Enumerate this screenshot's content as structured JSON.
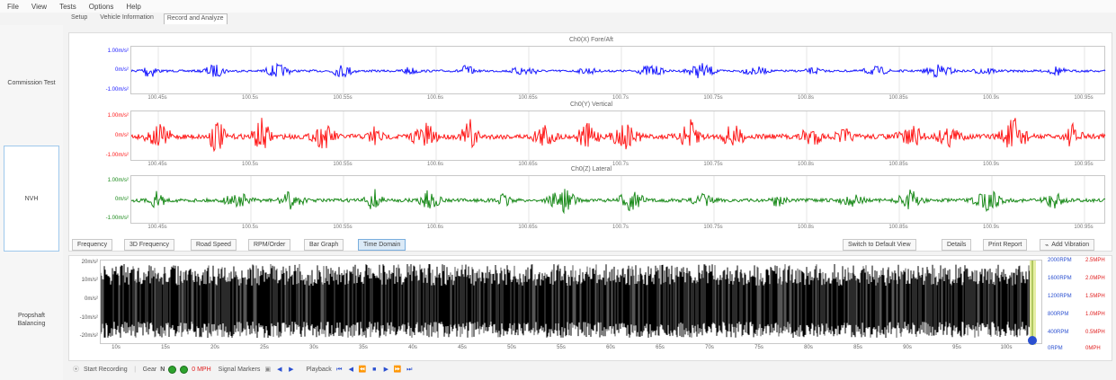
{
  "menu": [
    "File",
    "View",
    "Tests",
    "Options",
    "Help"
  ],
  "tabs": [
    "Setup",
    "Vehicle Information",
    "Record and Analyze"
  ],
  "sidebar": [
    "Commission Test",
    "NVH",
    "Propshaft Balancing"
  ],
  "charts": [
    {
      "title": "Ch0(X) Fore/Aft",
      "color": "#1a1aff",
      "yticks": [
        "1.00m/s²",
        "0m/s²",
        "-1.00m/s²"
      ]
    },
    {
      "title": "Ch0(Y) Vertical",
      "color": "#ff1a1a",
      "yticks": [
        "1.00m/s²",
        "0m/s²",
        "-1.00m/s²"
      ]
    },
    {
      "title": "Ch0(Z) Lateral",
      "color": "#1a8a1a",
      "yticks": [
        "1.00m/s²",
        "0m/s²",
        "-1.00m/s²"
      ]
    }
  ],
  "xticks": [
    "100.45s",
    "100.5s",
    "100.55s",
    "100.6s",
    "100.65s",
    "100.7s",
    "100.75s",
    "100.8s",
    "100.85s",
    "100.9s",
    "100.95s"
  ],
  "analysis_buttons": [
    "Frequency",
    "3D Frequency",
    "Road Speed",
    "RPM/Order",
    "Bar Graph",
    "Time Domain"
  ],
  "right_buttons": [
    "Switch to Default View",
    "Details",
    "Print Report",
    "Add Vibration"
  ],
  "bottom": {
    "yticks": [
      "20m/s²",
      "10m/s²",
      "0m/s²",
      "-10m/s²",
      "-20m/s²"
    ],
    "xticks": [
      "10s",
      "15s",
      "20s",
      "25s",
      "30s",
      "35s",
      "40s",
      "45s",
      "50s",
      "55s",
      "60s",
      "65s",
      "70s",
      "75s",
      "80s",
      "85s",
      "90s",
      "95s",
      "100s"
    ],
    "rpm_blue": [
      "2000RPM",
      "1600RPM",
      "1200RPM",
      "800RPM",
      "400RPM",
      "0RPM"
    ],
    "rpm_red": [
      "2.5MPH",
      "2.0MPH",
      "1.5MPH",
      "1.0MPH",
      "0.5MPH",
      "0MPH"
    ]
  },
  "status": {
    "record": "Start Recording",
    "gear": "Gear",
    "gear_value": "N",
    "mph": "0 MPH",
    "markers": "Signal Markers",
    "playback": "Playback"
  }
}
